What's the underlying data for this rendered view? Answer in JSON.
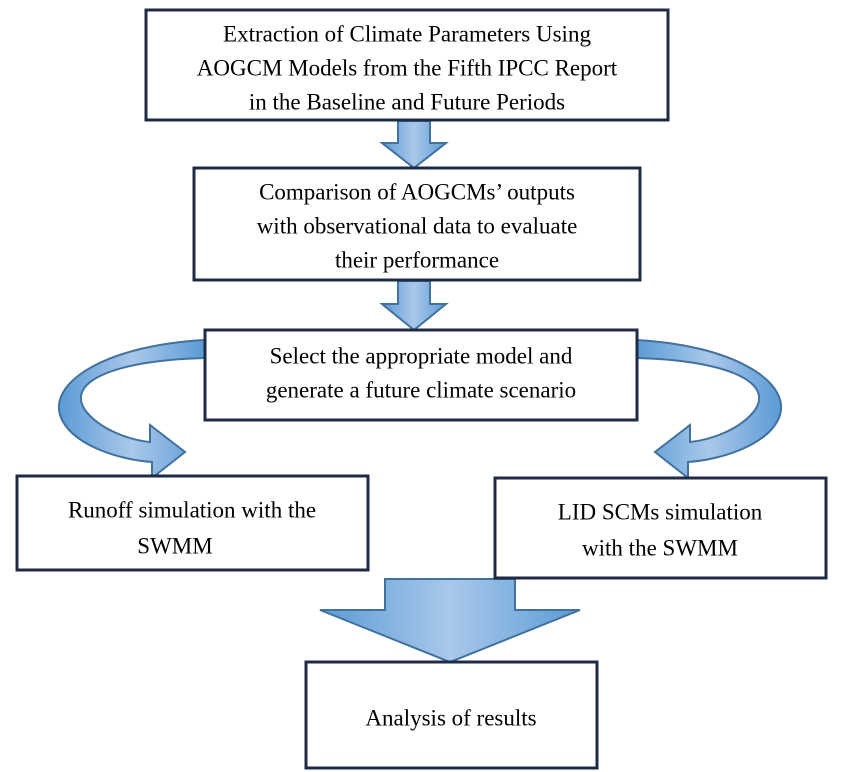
{
  "nodes": [
    {
      "lines": [
        "Extraction of Climate Parameters Using",
        "AOGCM Models from the Fifth IPCC Report",
        "in the Baseline and Future Periods"
      ]
    },
    {
      "lines": [
        "Comparison of AOGCMs’ outputs",
        "with observational data to evaluate",
        "their performance"
      ]
    },
    {
      "lines": [
        "Select the appropriate model and",
        "generate a future climate scenario"
      ]
    },
    {
      "lines": [
        "Runoff simulation with the",
        "SWMM"
      ]
    },
    {
      "lines": [
        "LID SCMs simulation",
        "with the SWMM"
      ]
    },
    {
      "lines": [
        "Analysis of results"
      ]
    }
  ]
}
